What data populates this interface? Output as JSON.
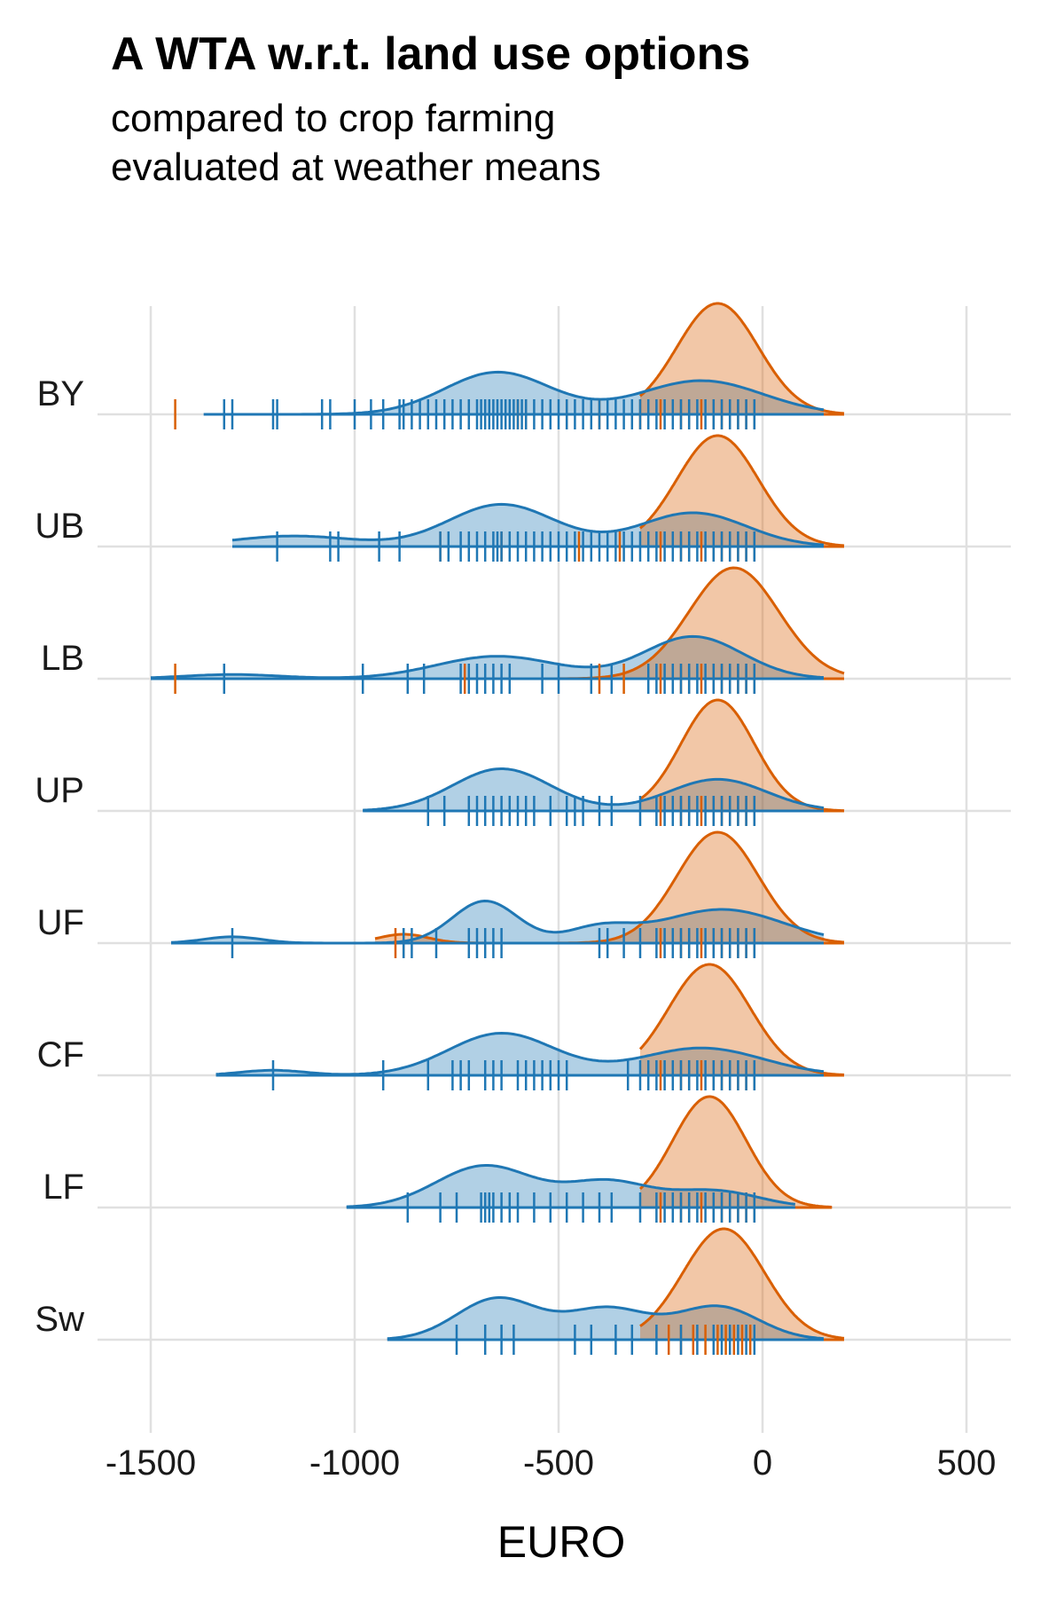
{
  "chart_data": {
    "type": "ridgeline",
    "title": "A WTA w.r.t. land use options",
    "subtitle_lines": [
      "compared to crop farming",
      "evaluated at weather means"
    ],
    "xlabel": "EURO",
    "xlim": [
      -1500,
      600
    ],
    "xticks": [
      -1500,
      -1000,
      -500,
      0,
      500
    ],
    "colors": {
      "blue": "#1f77b4",
      "orange": "#d95f02"
    },
    "categories": [
      {
        "label": "BY",
        "blue_peaks": [
          [
            -650,
            130,
            1.0
          ],
          [
            -150,
            150,
            0.8
          ]
        ],
        "blue_range": [
          -1370,
          150
        ],
        "orange_peaks": [
          [
            -110,
            100,
            1.0
          ]
        ],
        "orange_range": [
          -300,
          200
        ],
        "blue_rugs": [
          -1320,
          -1300,
          -1200,
          -1190,
          -1080,
          -1060,
          -1000,
          -960,
          -930,
          -890,
          -880,
          -860,
          -840,
          -820,
          -800,
          -780,
          -760,
          -740,
          -720,
          -700,
          -690,
          -680,
          -670,
          -660,
          -650,
          -640,
          -630,
          -620,
          -610,
          -600,
          -590,
          -580,
          -560,
          -540,
          -520,
          -500,
          -480,
          -460,
          -440,
          -420,
          -400,
          -380,
          -360,
          -340,
          -320,
          -300,
          -280,
          -260,
          -240,
          -220,
          -200,
          -180,
          -160,
          -140,
          -120,
          -100,
          -80,
          -60,
          -40,
          -20
        ],
        "orange_rugs": [
          -1440,
          -600,
          -580,
          -480,
          -400,
          -300,
          -250,
          -200,
          -180,
          -150,
          -120,
          -100,
          -80,
          -60,
          -40,
          -20
        ]
      },
      {
        "label": "UB",
        "blue_peaks": [
          [
            -640,
            130,
            1.0
          ],
          [
            -170,
            130,
            0.8
          ],
          [
            -1150,
            150,
            0.25
          ]
        ],
        "blue_range": [
          -1300,
          150
        ],
        "orange_peaks": [
          [
            -110,
            100,
            1.0
          ]
        ],
        "orange_range": [
          -300,
          200
        ],
        "blue_rugs": [
          -1190,
          -1060,
          -1040,
          -940,
          -890,
          -790,
          -770,
          -740,
          -720,
          -700,
          -680,
          -660,
          -650,
          -640,
          -620,
          -600,
          -580,
          -560,
          -540,
          -520,
          -500,
          -480,
          -460,
          -440,
          -420,
          -400,
          -380,
          -360,
          -340,
          -320,
          -300,
          -280,
          -260,
          -240,
          -220,
          -200,
          -180,
          -160,
          -140,
          -120,
          -100,
          -80,
          -60,
          -40,
          -20
        ],
        "orange_rugs": [
          -790,
          -640,
          -450,
          -350,
          -250,
          -200,
          -180,
          -150,
          -120,
          -100,
          -80,
          -60,
          -40,
          -20
        ]
      },
      {
        "label": "LB",
        "blue_peaks": [
          [
            -650,
            150,
            0.8
          ],
          [
            -170,
            120,
            1.5
          ],
          [
            -1300,
            120,
            0.15
          ]
        ],
        "blue_range": [
          -1500,
          150
        ],
        "orange_peaks": [
          [
            -70,
            110,
            1.0
          ]
        ],
        "orange_range": [
          -1500,
          200
        ],
        "blue_rugs": [
          -1320,
          -980,
          -870,
          -830,
          -740,
          -720,
          -700,
          -680,
          -660,
          -640,
          -620,
          -540,
          -500,
          -420,
          -370,
          -280,
          -260,
          -240,
          -220,
          -200,
          -180,
          -160,
          -140,
          -120,
          -100,
          -80,
          -60,
          -40,
          -20
        ],
        "orange_rugs": [
          -1440,
          -730,
          -400,
          -340,
          -250,
          -200,
          -180,
          -150,
          -120,
          -100,
          -80,
          -60,
          -40,
          -20
        ]
      },
      {
        "label": "UP",
        "blue_peaks": [
          [
            -640,
            120,
            1.0
          ],
          [
            -110,
            120,
            0.75
          ]
        ],
        "blue_range": [
          -980,
          150
        ],
        "orange_peaks": [
          [
            -110,
            90,
            1.0
          ]
        ],
        "orange_range": [
          -300,
          200
        ],
        "blue_rugs": [
          -820,
          -780,
          -720,
          -700,
          -680,
          -660,
          -640,
          -620,
          -600,
          -580,
          -560,
          -520,
          -480,
          -460,
          -440,
          -400,
          -370,
          -300,
          -260,
          -240,
          -220,
          -200,
          -180,
          -160,
          -140,
          -120,
          -100,
          -80,
          -60,
          -40,
          -20
        ],
        "orange_rugs": [
          -250,
          -200,
          -180,
          -150,
          -120,
          -100,
          -80,
          -60,
          -40,
          -20
        ]
      },
      {
        "label": "UF",
        "blue_peaks": [
          [
            -680,
            80,
            1.0
          ],
          [
            -100,
            150,
            0.8
          ],
          [
            -1300,
            70,
            0.15
          ],
          [
            -400,
            80,
            0.35
          ]
        ],
        "blue_range": [
          -1450,
          150
        ],
        "orange_peaks": [
          [
            -110,
            100,
            1.0
          ],
          [
            -880,
            60,
            0.08
          ]
        ],
        "orange_range": [
          -950,
          200
        ],
        "blue_rugs": [
          -1300,
          -880,
          -860,
          -800,
          -720,
          -700,
          -680,
          -660,
          -640,
          -400,
          -380,
          -340,
          -300,
          -260,
          -240,
          -220,
          -200,
          -180,
          -160,
          -140,
          -120,
          -100,
          -80,
          -60,
          -40,
          -20
        ],
        "orange_rugs": [
          -900,
          -880,
          -250,
          -200,
          -180,
          -150,
          -120,
          -100,
          -80,
          -60,
          -40,
          -20
        ]
      },
      {
        "label": "CF",
        "blue_peaks": [
          [
            -640,
            130,
            1.0
          ],
          [
            -150,
            150,
            0.65
          ],
          [
            -1200,
            80,
            0.12
          ]
        ],
        "blue_range": [
          -1340,
          150
        ],
        "orange_peaks": [
          [
            -130,
            100,
            1.0
          ]
        ],
        "orange_range": [
          -300,
          200
        ],
        "blue_rugs": [
          -1200,
          -930,
          -820,
          -760,
          -740,
          -720,
          -680,
          -660,
          -640,
          -600,
          -580,
          -560,
          -540,
          -520,
          -500,
          -480,
          -330,
          -300,
          -280,
          -260,
          -240,
          -220,
          -200,
          -180,
          -160,
          -140,
          -120,
          -100,
          -80,
          -60,
          -40,
          -20
        ],
        "orange_rugs": [
          -250,
          -200,
          -180,
          -150,
          -120,
          -100,
          -80,
          -60,
          -40,
          -20
        ]
      },
      {
        "label": "LF",
        "blue_peaks": [
          [
            -680,
            120,
            1.0
          ],
          [
            -380,
            100,
            0.6
          ],
          [
            -120,
            110,
            0.4
          ]
        ],
        "blue_range": [
          -1020,
          80
        ],
        "orange_peaks": [
          [
            -130,
            90,
            1.0
          ]
        ],
        "orange_range": [
          -300,
          170
        ],
        "blue_rugs": [
          -870,
          -790,
          -750,
          -690,
          -680,
          -670,
          -660,
          -640,
          -620,
          -600,
          -560,
          -520,
          -480,
          -440,
          -400,
          -370,
          -300,
          -260,
          -240,
          -220,
          -200,
          -180,
          -160,
          -140,
          -120,
          -100,
          -80,
          -60,
          -40,
          -20
        ],
        "orange_rugs": [
          -250,
          -200,
          -180,
          -150,
          -120,
          -100,
          -80,
          -60,
          -40,
          -20
        ]
      },
      {
        "label": "Sw",
        "blue_peaks": [
          [
            -650,
            100,
            1.0
          ],
          [
            -380,
            100,
            0.75
          ],
          [
            -110,
            100,
            0.8
          ]
        ],
        "blue_range": [
          -920,
          150
        ],
        "orange_peaks": [
          [
            -95,
            100,
            1.0
          ]
        ],
        "orange_range": [
          -300,
          200
        ],
        "blue_rugs": [
          -750,
          -680,
          -640,
          -610,
          -460,
          -420,
          -360,
          -320,
          -260,
          -200,
          -160,
          -120,
          -100,
          -80,
          -60,
          -40,
          -20
        ],
        "orange_rugs": [
          -230,
          -200,
          -170,
          -140,
          -110,
          -90,
          -70,
          -50,
          -30
        ]
      }
    ]
  }
}
